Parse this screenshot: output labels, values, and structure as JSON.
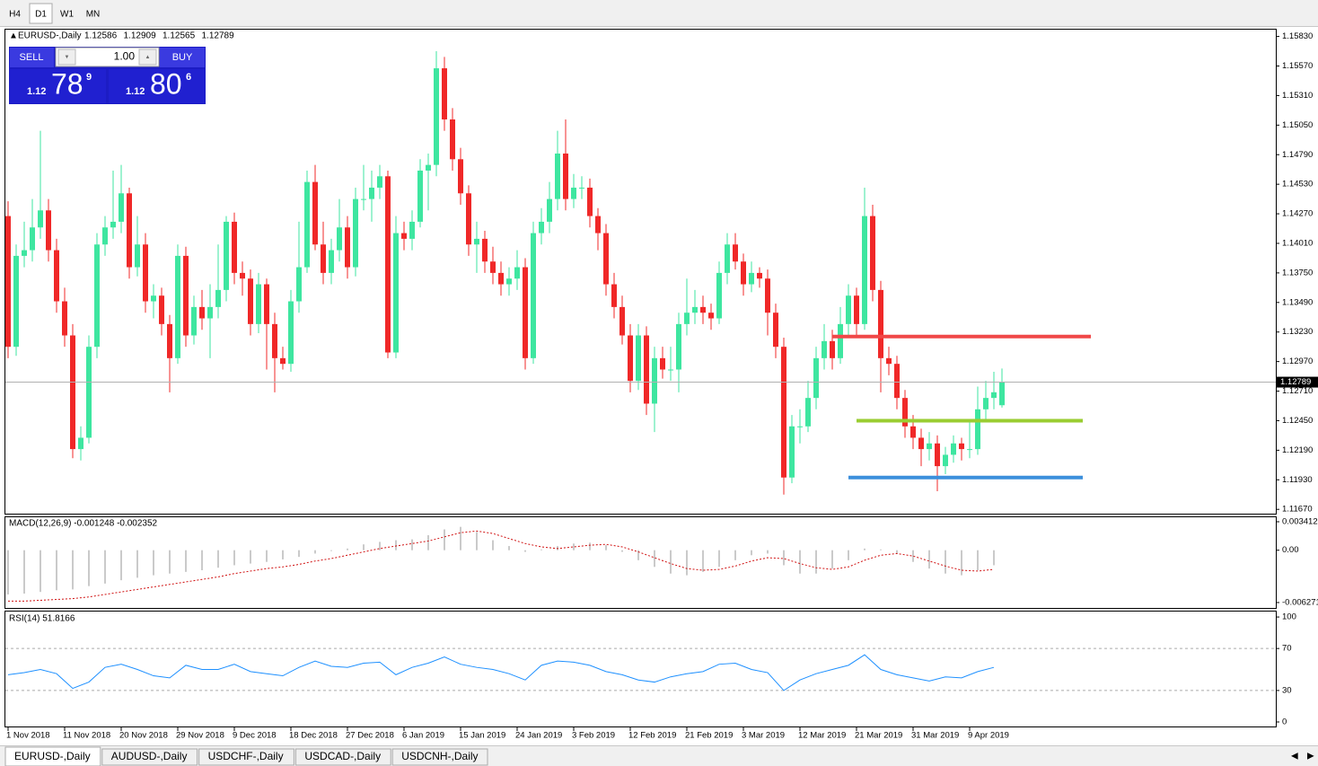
{
  "toolbar": {
    "timeframes": [
      "H4",
      "D1",
      "W1",
      "MN"
    ],
    "active": 1
  },
  "trade_panel": {
    "sell": "SELL",
    "buy": "BUY",
    "lots": "1.00",
    "bid": [
      "1.12",
      "78",
      "9"
    ],
    "ask": [
      "1.12",
      "80",
      "6"
    ]
  },
  "chart": {
    "symbol": "EURUSD-,Daily",
    "up_color": "#3ee6a0",
    "down_color": "#f02828",
    "ylim": [
      1.1164,
      1.1589
    ],
    "yticks": [
      {
        "value": 1.1583,
        "label": "1.15830"
      },
      {
        "value": 1.1557,
        "label": "1.15570"
      },
      {
        "value": 1.1531,
        "label": "1.15310"
      },
      {
        "value": 1.1505,
        "label": "1.15050"
      },
      {
        "value": 1.1479,
        "label": "1.14790"
      },
      {
        "value": 1.1453,
        "label": "1.14530"
      },
      {
        "value": 1.1427,
        "label": "1.14270"
      },
      {
        "value": 1.1401,
        "label": "1.14010"
      },
      {
        "value": 1.1375,
        "label": "1.13750"
      },
      {
        "value": 1.1349,
        "label": "1.13490"
      },
      {
        "value": 1.1323,
        "label": "1.13230"
      },
      {
        "value": 1.1297,
        "label": "1.12970"
      },
      {
        "value": 1.1271,
        "label": "1.12710"
      },
      {
        "value": 1.1245,
        "label": "1.12450"
      },
      {
        "value": 1.1219,
        "label": "1.12190"
      },
      {
        "value": 1.1193,
        "label": "1.11930"
      },
      {
        "value": 1.1167,
        "label": "1.11670"
      }
    ],
    "xlabels": [
      {
        "bar": 0,
        "label": "1 Nov 2018"
      },
      {
        "bar": 7,
        "label": "11 Nov 2018"
      },
      {
        "bar": 14,
        "label": "20 Nov 2018"
      },
      {
        "bar": 21,
        "label": "29 Nov 2018"
      },
      {
        "bar": 28,
        "label": "9 Dec 2018"
      },
      {
        "bar": 35,
        "label": "18 Dec 2018"
      },
      {
        "bar": 42,
        "label": "27 Dec 2018"
      },
      {
        "bar": 49,
        "label": "6 Jan 2019"
      },
      {
        "bar": 56,
        "label": "15 Jan 2019"
      },
      {
        "bar": 63,
        "label": "24 Jan 2019"
      },
      {
        "bar": 70,
        "label": "3 Feb 2019"
      },
      {
        "bar": 77,
        "label": "12 Feb 2019"
      },
      {
        "bar": 84,
        "label": "21 Feb 2019"
      },
      {
        "bar": 91,
        "label": "3 Mar 2019"
      },
      {
        "bar": 98,
        "label": "12 Mar 2019"
      },
      {
        "bar": 105,
        "label": "21 Mar 2019"
      },
      {
        "bar": 112,
        "label": "31 Mar 2019"
      },
      {
        "bar": 119,
        "label": "9 Apr 2019"
      }
    ],
    "levels": [
      {
        "value": 1.1319,
        "from": 102,
        "to": 134,
        "color": "#f04848"
      },
      {
        "value": 1.1245,
        "from": 105,
        "to": 133,
        "color": "#9acd32"
      },
      {
        "value": 1.1195,
        "from": 104,
        "to": 133,
        "color": "#3c8fdc"
      }
    ],
    "candles": [
      [
        1.1425,
        1.1438,
        1.13,
        1.131
      ],
      [
        1.131,
        1.14,
        1.1302,
        1.139
      ],
      [
        1.139,
        1.142,
        1.138,
        1.1395
      ],
      [
        1.1395,
        1.144,
        1.1385,
        1.1415
      ],
      [
        1.1415,
        1.15,
        1.1405,
        1.143
      ],
      [
        1.143,
        1.144,
        1.1385,
        1.1395
      ],
      [
        1.1395,
        1.1405,
        1.134,
        1.135
      ],
      [
        1.135,
        1.1362,
        1.131,
        1.132
      ],
      [
        1.132,
        1.133,
        1.1212,
        1.122
      ],
      [
        1.122,
        1.124,
        1.121,
        1.123
      ],
      [
        1.123,
        1.132,
        1.1225,
        1.131
      ],
      [
        1.131,
        1.141,
        1.13,
        1.14
      ],
      [
        1.14,
        1.1425,
        1.139,
        1.1415
      ],
      [
        1.1415,
        1.1465,
        1.1405,
        1.142
      ],
      [
        1.142,
        1.147,
        1.141,
        1.1445
      ],
      [
        1.1445,
        1.145,
        1.137,
        1.138
      ],
      [
        1.138,
        1.1425,
        1.1372,
        1.14
      ],
      [
        1.14,
        1.141,
        1.134,
        1.135
      ],
      [
        1.135,
        1.1365,
        1.1335,
        1.1355
      ],
      [
        1.1355,
        1.1362,
        1.132,
        1.133
      ],
      [
        1.133,
        1.1338,
        1.127,
        1.13
      ],
      [
        1.13,
        1.14,
        1.1295,
        1.139
      ],
      [
        1.139,
        1.1398,
        1.131,
        1.132
      ],
      [
        1.132,
        1.1355,
        1.1312,
        1.1345
      ],
      [
        1.1345,
        1.136,
        1.1325,
        1.1335
      ],
      [
        1.1335,
        1.1365,
        1.13,
        1.1345
      ],
      [
        1.1345,
        1.14,
        1.1335,
        1.136
      ],
      [
        1.136,
        1.1425,
        1.135,
        1.142
      ],
      [
        1.142,
        1.1428,
        1.1365,
        1.1375
      ],
      [
        1.1375,
        1.1385,
        1.1355,
        1.137
      ],
      [
        1.137,
        1.1378,
        1.132,
        1.133
      ],
      [
        1.133,
        1.1375,
        1.1322,
        1.1365
      ],
      [
        1.1365,
        1.137,
        1.129,
        1.133
      ],
      [
        1.133,
        1.134,
        1.127,
        1.13
      ],
      [
        1.13,
        1.131,
        1.129,
        1.1295
      ],
      [
        1.1295,
        1.136,
        1.1288,
        1.135
      ],
      [
        1.135,
        1.142,
        1.134,
        1.138
      ],
      [
        1.138,
        1.1465,
        1.1375,
        1.1455
      ],
      [
        1.1455,
        1.147,
        1.1395,
        1.14
      ],
      [
        1.14,
        1.142,
        1.1365,
        1.1375
      ],
      [
        1.1375,
        1.1405,
        1.1365,
        1.1395
      ],
      [
        1.1395,
        1.144,
        1.1385,
        1.1415
      ],
      [
        1.1415,
        1.1425,
        1.137,
        1.138
      ],
      [
        1.138,
        1.145,
        1.1372,
        1.144
      ],
      [
        1.144,
        1.147,
        1.143,
        1.144
      ],
      [
        1.144,
        1.1465,
        1.142,
        1.145
      ],
      [
        1.145,
        1.147,
        1.144,
        1.146
      ],
      [
        1.146,
        1.1465,
        1.13,
        1.1305
      ],
      [
        1.1305,
        1.1425,
        1.13,
        1.141
      ],
      [
        1.141,
        1.142,
        1.1395,
        1.1405
      ],
      [
        1.1405,
        1.143,
        1.1395,
        1.142
      ],
      [
        1.142,
        1.1475,
        1.1415,
        1.1465
      ],
      [
        1.1465,
        1.148,
        1.143,
        1.147
      ],
      [
        1.147,
        1.157,
        1.146,
        1.1555
      ],
      [
        1.1555,
        1.1565,
        1.15,
        1.151
      ],
      [
        1.151,
        1.152,
        1.1465,
        1.1475
      ],
      [
        1.1475,
        1.1485,
        1.1435,
        1.1445
      ],
      [
        1.1445,
        1.1452,
        1.139,
        1.14
      ],
      [
        1.14,
        1.142,
        1.1375,
        1.1405
      ],
      [
        1.1405,
        1.1412,
        1.1375,
        1.1385
      ],
      [
        1.1385,
        1.1398,
        1.1365,
        1.1375
      ],
      [
        1.1375,
        1.1385,
        1.1355,
        1.1365
      ],
      [
        1.1365,
        1.138,
        1.1355,
        1.137
      ],
      [
        1.137,
        1.1395,
        1.136,
        1.138
      ],
      [
        1.138,
        1.1388,
        1.129,
        1.13
      ],
      [
        1.13,
        1.142,
        1.1295,
        1.141
      ],
      [
        1.141,
        1.1432,
        1.14,
        1.142
      ],
      [
        1.142,
        1.1455,
        1.141,
        1.144
      ],
      [
        1.144,
        1.15,
        1.143,
        1.148
      ],
      [
        1.148,
        1.151,
        1.143,
        1.144
      ],
      [
        1.144,
        1.1462,
        1.1432,
        1.145
      ],
      [
        1.145,
        1.146,
        1.144,
        1.145
      ],
      [
        1.145,
        1.1458,
        1.1415,
        1.1425
      ],
      [
        1.1425,
        1.1432,
        1.1395,
        1.141
      ],
      [
        1.141,
        1.1418,
        1.1355,
        1.1365
      ],
      [
        1.1365,
        1.1375,
        1.1335,
        1.1345
      ],
      [
        1.1345,
        1.1355,
        1.1312,
        1.132
      ],
      [
        1.132,
        1.133,
        1.127,
        1.128
      ],
      [
        1.128,
        1.133,
        1.1272,
        1.132
      ],
      [
        1.132,
        1.1328,
        1.125,
        1.126
      ],
      [
        1.126,
        1.131,
        1.1235,
        1.13
      ],
      [
        1.13,
        1.131,
        1.1282,
        1.129
      ],
      [
        1.129,
        1.131,
        1.128,
        1.129
      ],
      [
        1.129,
        1.134,
        1.127,
        1.133
      ],
      [
        1.133,
        1.137,
        1.132,
        1.134
      ],
      [
        1.134,
        1.136,
        1.133,
        1.1345
      ],
      [
        1.1345,
        1.1355,
        1.133,
        1.134
      ],
      [
        1.134,
        1.1348,
        1.1325,
        1.1335
      ],
      [
        1.1335,
        1.1385,
        1.133,
        1.1375
      ],
      [
        1.1375,
        1.141,
        1.1365,
        1.14
      ],
      [
        1.14,
        1.141,
        1.1378,
        1.1385
      ],
      [
        1.1385,
        1.1392,
        1.1355,
        1.1365
      ],
      [
        1.1365,
        1.1385,
        1.1358,
        1.1375
      ],
      [
        1.1375,
        1.138,
        1.1362,
        1.137
      ],
      [
        1.137,
        1.1378,
        1.132,
        1.134
      ],
      [
        1.134,
        1.1348,
        1.13,
        1.131
      ],
      [
        1.131,
        1.1318,
        1.118,
        1.1195
      ],
      [
        1.1195,
        1.125,
        1.119,
        1.124
      ],
      [
        1.124,
        1.1255,
        1.1225,
        1.124
      ],
      [
        1.124,
        1.128,
        1.1235,
        1.1265
      ],
      [
        1.1265,
        1.131,
        1.1255,
        1.13
      ],
      [
        1.13,
        1.133,
        1.129,
        1.1315
      ],
      [
        1.1315,
        1.1325,
        1.129,
        1.13
      ],
      [
        1.13,
        1.1345,
        1.1295,
        1.133
      ],
      [
        1.133,
        1.1365,
        1.132,
        1.1355
      ],
      [
        1.1355,
        1.1362,
        1.132,
        1.133
      ],
      [
        1.133,
        1.145,
        1.1325,
        1.1425
      ],
      [
        1.1425,
        1.1435,
        1.135,
        1.136
      ],
      [
        1.136,
        1.1368,
        1.127,
        1.13
      ],
      [
        1.13,
        1.131,
        1.1285,
        1.1295
      ],
      [
        1.1295,
        1.1302,
        1.1255,
        1.1265
      ],
      [
        1.1265,
        1.1272,
        1.123,
        1.124
      ],
      [
        1.124,
        1.125,
        1.122,
        1.123
      ],
      [
        1.123,
        1.1238,
        1.1205,
        1.122
      ],
      [
        1.122,
        1.1235,
        1.121,
        1.1225
      ],
      [
        1.1225,
        1.1232,
        1.1183,
        1.1205
      ],
      [
        1.1205,
        1.1222,
        1.1198,
        1.1215
      ],
      [
        1.1215,
        1.1232,
        1.1208,
        1.1225
      ],
      [
        1.1225,
        1.123,
        1.121,
        1.122
      ],
      [
        1.122,
        1.1245,
        1.1212,
        1.122
      ],
      [
        1.122,
        1.1275,
        1.1215,
        1.1255
      ],
      [
        1.1255,
        1.128,
        1.1245,
        1.1265
      ],
      [
        1.1265,
        1.1288,
        1.1255,
        1.127
      ],
      [
        1.12586,
        1.12909,
        1.12565,
        1.12789
      ]
    ]
  },
  "macd": {
    "title": "MACD(12,26,9) -0.001248 -0.002352",
    "ylim": [
      -0.00692,
      0.00395
    ],
    "yticks": [
      0.003412,
      {
        "value": 0,
        "label": "0.00"
      },
      -0.006271
    ],
    "bars": [
      0,
      2,
      4,
      6,
      8,
      10,
      12,
      14,
      16,
      18,
      20,
      22,
      24,
      26,
      28,
      30,
      32,
      34,
      36,
      38,
      40,
      42,
      44,
      46,
      48,
      50,
      52,
      54,
      56,
      58,
      60,
      62,
      64,
      66,
      68,
      70,
      72,
      74,
      76,
      78,
      80,
      82,
      84,
      86,
      88,
      90,
      92,
      94,
      96,
      98,
      100,
      102,
      104,
      106,
      108,
      110,
      112,
      114,
      116,
      118,
      120,
      122
    ],
    "main": [
      -0.0053,
      -0.0052,
      -0.005,
      -0.0048,
      -0.0047,
      -0.0043,
      -0.004,
      -0.0036,
      -0.0033,
      -0.003,
      -0.0028,
      -0.0026,
      -0.0024,
      -0.0021,
      -0.0018,
      -0.0016,
      -0.0014,
      -0.0011,
      -0.0008,
      -0.0004,
      -0.0001,
      0.0002,
      0.0007,
      0.001,
      0.0012,
      0.0013,
      0.0018,
      0.0025,
      0.0028,
      0.0022,
      0.0012,
      0.0005,
      -0.0002,
      0.0001,
      0.0005,
      0.0008,
      0.0009,
      0.0006,
      -0.0002,
      -0.0012,
      -0.002,
      -0.0028,
      -0.003,
      -0.0026,
      -0.002,
      -0.0012,
      -0.0006,
      -0.0004,
      -0.0018,
      -0.0028,
      -0.0028,
      -0.0022,
      -0.0012,
      0.0002,
      0.0001,
      -0.0004,
      -0.0014,
      -0.0022,
      -0.0028,
      -0.003,
      -0.0024,
      -0.0018
    ],
    "signal": [
      -0.0061,
      -0.0061,
      -0.006,
      -0.0059,
      -0.0058,
      -0.0056,
      -0.0053,
      -0.005,
      -0.0047,
      -0.0044,
      -0.0041,
      -0.0038,
      -0.0035,
      -0.0032,
      -0.0028,
      -0.0025,
      -0.0022,
      -0.002,
      -0.0017,
      -0.0013,
      -0.001,
      -0.0006,
      -0.0002,
      0.0002,
      0.0005,
      0.0008,
      0.0011,
      0.0016,
      0.0021,
      0.0023,
      0.002,
      0.0014,
      0.0008,
      0.0004,
      0.0002,
      0.0004,
      0.0006,
      0.0007,
      0.0004,
      -0.0002,
      -0.0009,
      -0.0016,
      -0.0022,
      -0.0024,
      -0.0023,
      -0.0019,
      -0.0013,
      -0.0009,
      -0.001,
      -0.0016,
      -0.0021,
      -0.0023,
      -0.002,
      -0.0012,
      -0.0006,
      -0.0004,
      -0.0007,
      -0.0013,
      -0.0019,
      -0.0024,
      -0.0025,
      -0.0023
    ]
  },
  "rsi": {
    "title": "RSI(14) 51.8166",
    "ylim": [
      -4.3,
      105.2
    ],
    "yticks": [
      100,
      70,
      30,
      0
    ],
    "levels": [
      70,
      30
    ],
    "bars": [
      0,
      2,
      4,
      6,
      8,
      10,
      12,
      14,
      16,
      18,
      20,
      22,
      24,
      26,
      28,
      30,
      32,
      34,
      36,
      38,
      40,
      42,
      44,
      46,
      48,
      50,
      52,
      54,
      56,
      58,
      60,
      62,
      64,
      66,
      68,
      70,
      72,
      74,
      76,
      78,
      80,
      82,
      84,
      86,
      88,
      90,
      92,
      94,
      96,
      98,
      100,
      102,
      104,
      106,
      108,
      110,
      112,
      114,
      116,
      118,
      120,
      122
    ],
    "values": [
      45,
      47,
      50,
      46,
      32,
      38,
      52,
      55,
      50,
      44,
      42,
      54,
      50,
      50,
      55,
      48,
      46,
      44,
      52,
      58,
      53,
      52,
      56,
      57,
      45,
      52,
      56,
      62,
      55,
      52,
      50,
      46,
      40,
      54,
      58,
      57,
      54,
      48,
      45,
      40,
      38,
      43,
      46,
      48,
      55,
      56,
      50,
      47,
      30,
      40,
      46,
      50,
      54,
      64,
      50,
      45,
      42,
      39,
      43,
      42,
      48,
      52
    ]
  },
  "tabs": [
    "EURUSD-,Daily",
    "AUDUSD-,Daily",
    "USDCHF-,Daily",
    "USDCAD-,Daily",
    "USDCNH-,Daily"
  ],
  "active_tab": 0
}
